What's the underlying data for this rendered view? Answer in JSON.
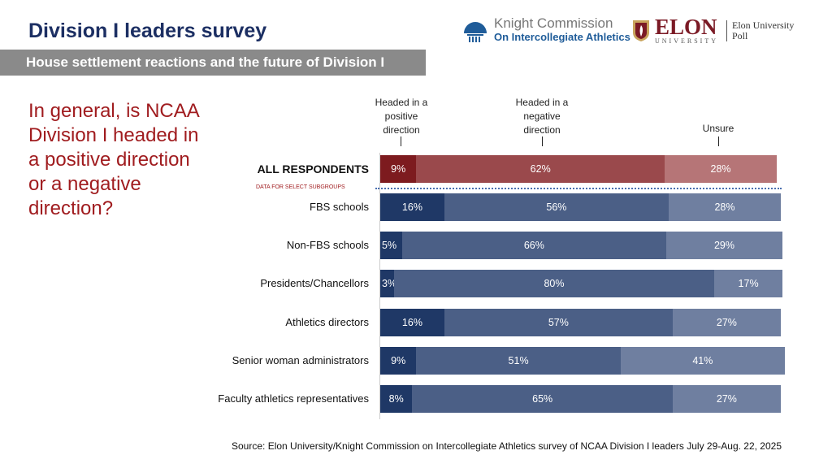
{
  "header": {
    "title": "Division I leaders survey",
    "subtitle": "House settlement reactions and the future of Division I"
  },
  "logos": {
    "knight_line1": "Knight Commission",
    "knight_line2": "On Intercollegiate Athletics",
    "elon": "ELON",
    "elon_sub": "UNIVERSITY",
    "poll_line1": "Elon University",
    "poll_line2": "Poll"
  },
  "question": "In general, is NCAA Division I headed in a positive direction or a negative direction?",
  "subgroup_label": "DATA FOR SELECT SUBGROUPS",
  "source": "Source: Elon University/Knight Commission on Intercollegiate Athletics survey of NCAA Division I leaders July 29-Aug. 22, 2025",
  "colors": {
    "red": [
      "#7d1b1f",
      "#9a494c",
      "#b67577"
    ],
    "blue": [
      "#1f3866",
      "#4b5f86",
      "#6f7fa0"
    ]
  },
  "chart_data": {
    "type": "bar",
    "orientation": "horizontal",
    "stacked": true,
    "xlim": [
      0,
      100
    ],
    "grid": false,
    "series_names": [
      "Headed in a positive direction",
      "Headed in a negative direction",
      "Unsure"
    ],
    "categories": [
      "ALL RESPONDENTS",
      "FBS schools",
      "Non-FBS schools",
      "Presidents/Chancellors",
      "Athletics directors",
      "Senior woman administrators",
      "Faculty athletics representatives"
    ],
    "values": [
      [
        9,
        62,
        28
      ],
      [
        16,
        56,
        28
      ],
      [
        5,
        66,
        29
      ],
      [
        3,
        80,
        17
      ],
      [
        16,
        57,
        27
      ],
      [
        9,
        51,
        41
      ],
      [
        8,
        65,
        27
      ]
    ],
    "labels": [
      [
        "9%",
        "62%",
        "28%"
      ],
      [
        "16%",
        "56%",
        "28%"
      ],
      [
        "5%",
        "66%",
        "29%"
      ],
      [
        "3%",
        "80%",
        "17%"
      ],
      [
        "16%",
        "57%",
        "27%"
      ],
      [
        "9%",
        "51%",
        "41%"
      ],
      [
        "8%",
        "65%",
        "27%"
      ]
    ]
  }
}
